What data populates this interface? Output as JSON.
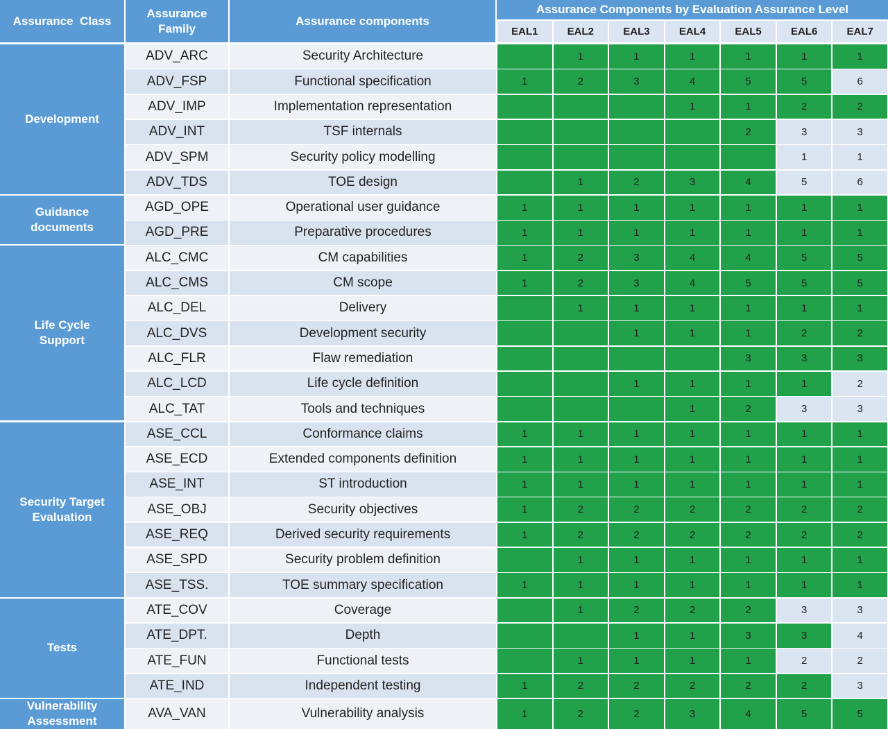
{
  "header": {
    "class": "Assurance  Class",
    "family": "Assurance Family",
    "components": "Assurance components",
    "eal_title": "Assurance Components by Evaluation Assurance Level",
    "eal_levels": [
      "EAL1",
      "EAL2",
      "EAL3",
      "EAL4",
      "EAL5",
      "EAL6",
      "EAL7"
    ]
  },
  "palette": {
    "g": "#21a149",
    "l": "#dbe5f1"
  },
  "groups": [
    {
      "class": "Development",
      "rows": [
        {
          "family": "ADV_ARC",
          "component": "Security Architecture",
          "eal": [
            null,
            1,
            1,
            1,
            1,
            1,
            1
          ],
          "fill": "ggggggg"
        },
        {
          "family": "ADV_FSP",
          "component": "Functional specification",
          "eal": [
            1,
            2,
            3,
            4,
            5,
            5,
            6
          ],
          "fill": "ggggggl"
        },
        {
          "family": "ADV_IMP",
          "component": "Implementation representation",
          "eal": [
            null,
            null,
            null,
            1,
            1,
            2,
            2
          ],
          "fill": "ggggggg"
        },
        {
          "family": "ADV_INT",
          "component": "TSF internals",
          "eal": [
            null,
            null,
            null,
            null,
            2,
            3,
            3
          ],
          "fill": "gggggll"
        },
        {
          "family": "ADV_SPM",
          "component": "Security policy modelling",
          "eal": [
            null,
            null,
            null,
            null,
            null,
            1,
            1
          ],
          "fill": "gggggll"
        },
        {
          "family": "ADV_TDS",
          "component": "TOE design",
          "eal": [
            null,
            1,
            2,
            3,
            4,
            5,
            6
          ],
          "fill": "gggggll"
        }
      ]
    },
    {
      "class": "Guidance documents",
      "rows": [
        {
          "family": "AGD_OPE",
          "component": "Operational user guidance",
          "eal": [
            1,
            1,
            1,
            1,
            1,
            1,
            1
          ],
          "fill": "ggggggg"
        },
        {
          "family": "AGD_PRE",
          "component": "Preparative procedures",
          "eal": [
            1,
            1,
            1,
            1,
            1,
            1,
            1
          ],
          "fill": "ggggggg"
        }
      ]
    },
    {
      "class": "Life Cycle Support",
      "rows": [
        {
          "family": "ALC_CMC",
          "component": "CM capabilities",
          "eal": [
            1,
            2,
            3,
            4,
            4,
            5,
            5
          ],
          "fill": "ggggggg"
        },
        {
          "family": "ALC_CMS",
          "component": "CM scope",
          "eal": [
            1,
            2,
            3,
            4,
            5,
            5,
            5
          ],
          "fill": "ggggggg"
        },
        {
          "family": "ALC_DEL",
          "component": "Delivery",
          "eal": [
            null,
            1,
            1,
            1,
            1,
            1,
            1
          ],
          "fill": "ggggggg"
        },
        {
          "family": "ALC_DVS",
          "component": "Development security",
          "eal": [
            null,
            null,
            1,
            1,
            1,
            2,
            2
          ],
          "fill": "ggggggg"
        },
        {
          "family": "ALC_FLR",
          "component": "Flaw remediation",
          "eal": [
            null,
            null,
            null,
            null,
            3,
            3,
            3
          ],
          "fill": "ggggggg"
        },
        {
          "family": "ALC_LCD",
          "component": "Life cycle definition",
          "eal": [
            null,
            null,
            1,
            1,
            1,
            1,
            2
          ],
          "fill": "ggggggl"
        },
        {
          "family": "ALC_TAT",
          "component": "Tools and techniques",
          "eal": [
            null,
            null,
            null,
            1,
            2,
            3,
            3
          ],
          "fill": "gggggll"
        }
      ]
    },
    {
      "class": "Security Target Evaluation",
      "rows": [
        {
          "family": "ASE_CCL",
          "component": "Conformance claims",
          "eal": [
            1,
            1,
            1,
            1,
            1,
            1,
            1
          ],
          "fill": "ggggggg"
        },
        {
          "family": "ASE_ECD",
          "component": "Extended components definition",
          "eal": [
            1,
            1,
            1,
            1,
            1,
            1,
            1
          ],
          "fill": "ggggggg"
        },
        {
          "family": "ASE_INT",
          "component": "ST introduction",
          "eal": [
            1,
            1,
            1,
            1,
            1,
            1,
            1
          ],
          "fill": "ggggggg"
        },
        {
          "family": "ASE_OBJ",
          "component": "Security objectives",
          "eal": [
            1,
            2,
            2,
            2,
            2,
            2,
            2
          ],
          "fill": "ggggggg"
        },
        {
          "family": "ASE_REQ",
          "component": "Derived security requirements",
          "eal": [
            1,
            2,
            2,
            2,
            2,
            2,
            2
          ],
          "fill": "ggggggg"
        },
        {
          "family": "ASE_SPD",
          "component": "Security problem definition",
          "eal": [
            null,
            1,
            1,
            1,
            1,
            1,
            1
          ],
          "fill": "ggggggg"
        },
        {
          "family": "ASE_TSS.",
          "component": "TOE summary specification",
          "eal": [
            1,
            1,
            1,
            1,
            1,
            1,
            1
          ],
          "fill": "ggggggg"
        }
      ]
    },
    {
      "class": "Tests",
      "rows": [
        {
          "family": "ATE_COV",
          "component": "Coverage",
          "eal": [
            null,
            1,
            2,
            2,
            2,
            3,
            3
          ],
          "fill": "gggggll"
        },
        {
          "family": "ATE_DPT.",
          "component": "Depth",
          "eal": [
            null,
            null,
            1,
            1,
            3,
            3,
            4
          ],
          "fill": "ggggggl"
        },
        {
          "family": "ATE_FUN",
          "component": "Functional tests",
          "eal": [
            null,
            1,
            1,
            1,
            1,
            2,
            2
          ],
          "fill": "gggggll"
        },
        {
          "family": "ATE_IND",
          "component": "Independent testing",
          "eal": [
            1,
            2,
            2,
            2,
            2,
            2,
            3
          ],
          "fill": "ggggggl"
        }
      ]
    },
    {
      "class": "Vulnerability Assessment",
      "rows": [
        {
          "family": "AVA_VAN",
          "component": "Vulnerability analysis",
          "eal": [
            1,
            2,
            2,
            3,
            4,
            5,
            5
          ],
          "fill": "ggggggg"
        }
      ]
    }
  ]
}
